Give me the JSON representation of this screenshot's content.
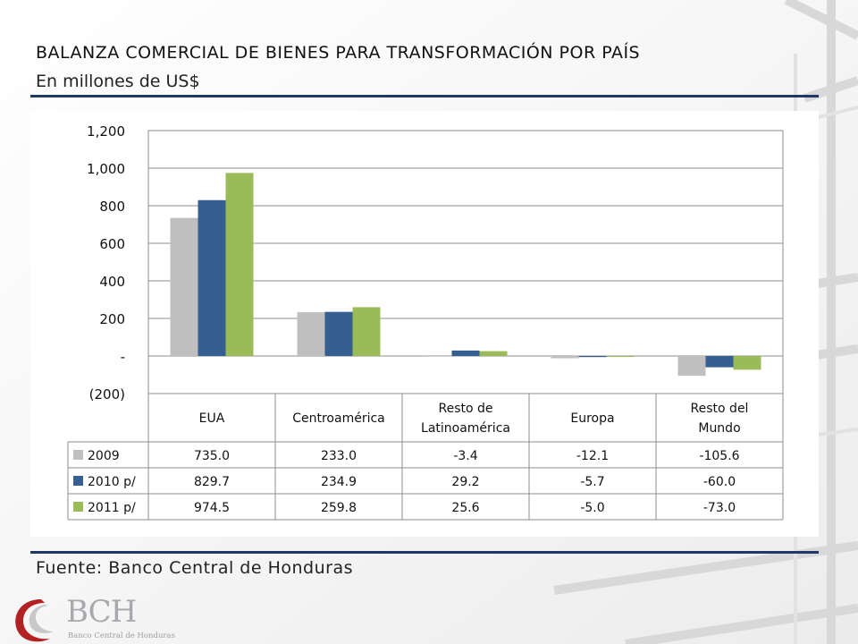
{
  "header": {
    "title": "BALANZA COMERCIAL DE BIENES PARA TRANSFORMACIÓN POR PAÍS",
    "subtitle": "En millones de US$"
  },
  "footer": {
    "source": "Fuente: Banco Central de Honduras"
  },
  "logo": {
    "name": "BCH",
    "subtitle": "Banco Central de Honduras"
  },
  "colors": {
    "rule": "#1f3864",
    "grid": "#8c8c8c",
    "series": [
      "#bfbfbf",
      "#355e91",
      "#9bbb59"
    ]
  },
  "chart_data": {
    "type": "bar",
    "title": "",
    "xlabel": "",
    "ylabel": "",
    "categories": [
      [
        "EUA"
      ],
      [
        "Centroamérica"
      ],
      [
        "Resto de",
        "Latinoamérica"
      ],
      [
        "Europa"
      ],
      [
        "Resto del",
        "Mundo"
      ]
    ],
    "series": [
      {
        "name": "2009",
        "values": [
          735.0,
          233.0,
          -3.4,
          -12.1,
          -105.6
        ]
      },
      {
        "name": "2010 p/",
        "values": [
          829.7,
          234.9,
          29.2,
          -5.7,
          -60.0
        ]
      },
      {
        "name": "2011 p/",
        "values": [
          974.5,
          259.8,
          25.6,
          -5.0,
          -73.0
        ]
      }
    ],
    "value_labels": [
      [
        "735.0",
        "233.0",
        "-3.4",
        "-12.1",
        "-105.6"
      ],
      [
        "829.7",
        "234.9",
        "29.2",
        "-5.7",
        "-60.0"
      ],
      [
        "974.5",
        "259.8",
        "25.6",
        "-5.0",
        "-73.0"
      ]
    ],
    "yticks": [
      -200,
      0,
      200,
      400,
      600,
      800,
      1000,
      1200
    ],
    "ytick_labels": [
      "(200)",
      "-",
      "200",
      "400",
      "600",
      "800",
      "1,000",
      "1,200"
    ],
    "ylim": [
      -200,
      1200
    ],
    "grid": true,
    "legend": "data-table"
  }
}
